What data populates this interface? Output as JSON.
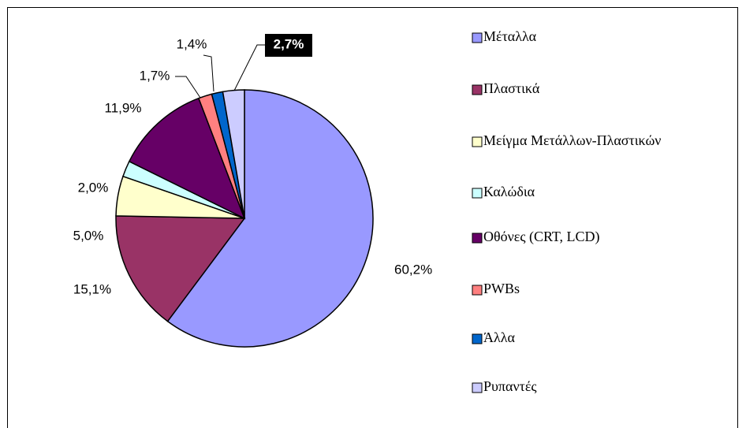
{
  "chart_data": {
    "type": "pie",
    "categories": [
      "Μέταλλα",
      "Πλαστικά",
      "Μείγμα Μετάλλων-Πλαστικών",
      "Καλώδια",
      "Οθόνες (CRT, LCD)",
      "PWBs",
      "Άλλα",
      "Ρυπαντές"
    ],
    "values": [
      60.2,
      15.1,
      5.0,
      2.0,
      11.9,
      1.7,
      1.4,
      2.7
    ],
    "value_labels": [
      "60,2%",
      "15,1%",
      "5,0%",
      "2,0%",
      "11,9%",
      "1,7%",
      "1,4%",
      "2,7%"
    ],
    "colors": [
      "#9999ff",
      "#993366",
      "#ffffcc",
      "#ccffff",
      "#660066",
      "#ff8080",
      "#0066cc",
      "#ccccff"
    ],
    "legend": "right"
  }
}
